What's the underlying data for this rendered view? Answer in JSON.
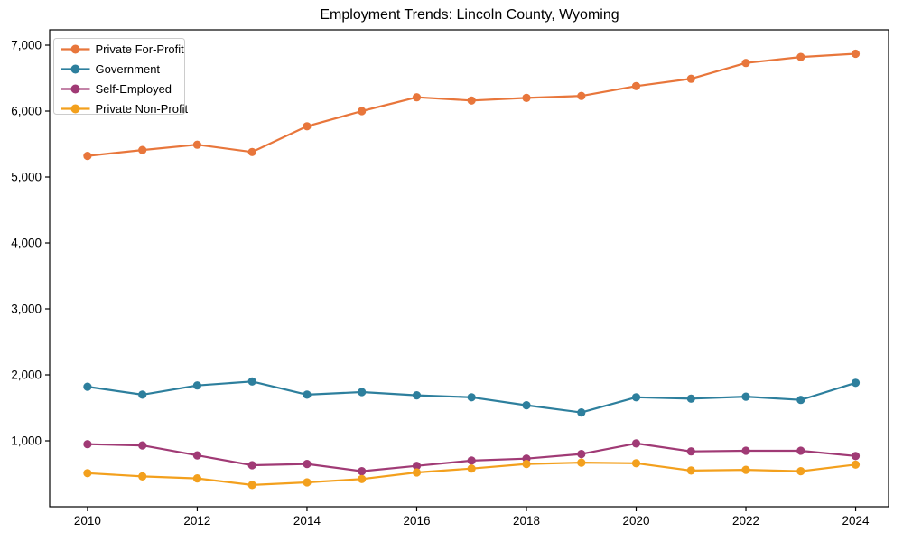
{
  "chart_data": {
    "type": "line",
    "title": "Employment Trends: Lincoln County, Wyoming",
    "xlabel": "",
    "ylabel": "",
    "x": [
      2010,
      2011,
      2012,
      2013,
      2014,
      2015,
      2016,
      2017,
      2018,
      2019,
      2020,
      2021,
      2022,
      2023,
      2024
    ],
    "x_tick_labels": [
      "2010",
      "2012",
      "2014",
      "2016",
      "2018",
      "2020",
      "2022",
      "2024"
    ],
    "y_ticks": [
      1000,
      2000,
      3000,
      4000,
      5000,
      6000,
      7000
    ],
    "y_tick_labels": [
      "1,000",
      "2,000",
      "3,000",
      "4,000",
      "5,000",
      "6,000",
      "7,000"
    ],
    "xlim": [
      2009.31,
      2024.6
    ],
    "ylim": [
      0,
      7233
    ],
    "grid": false,
    "legend_position": "upper-left",
    "series": [
      {
        "name": "Private For-Profit",
        "color": "#e8763b",
        "values": [
          5320,
          5410,
          5490,
          5380,
          5770,
          6000,
          6210,
          6160,
          6200,
          6230,
          6380,
          6490,
          6730,
          6820,
          6870
        ]
      },
      {
        "name": "Government",
        "color": "#2d7f9d",
        "values": [
          1820,
          1700,
          1840,
          1900,
          1700,
          1740,
          1690,
          1660,
          1540,
          1430,
          1660,
          1640,
          1670,
          1620,
          1880
        ]
      },
      {
        "name": "Self-Employed",
        "color": "#a03a75",
        "values": [
          950,
          930,
          780,
          630,
          650,
          540,
          620,
          700,
          730,
          800,
          960,
          840,
          850,
          850,
          770
        ]
      },
      {
        "name": "Private Non-Profit",
        "color": "#f3a01d",
        "values": [
          510,
          460,
          430,
          330,
          370,
          420,
          520,
          580,
          650,
          670,
          660,
          550,
          560,
          540,
          640
        ]
      }
    ]
  }
}
